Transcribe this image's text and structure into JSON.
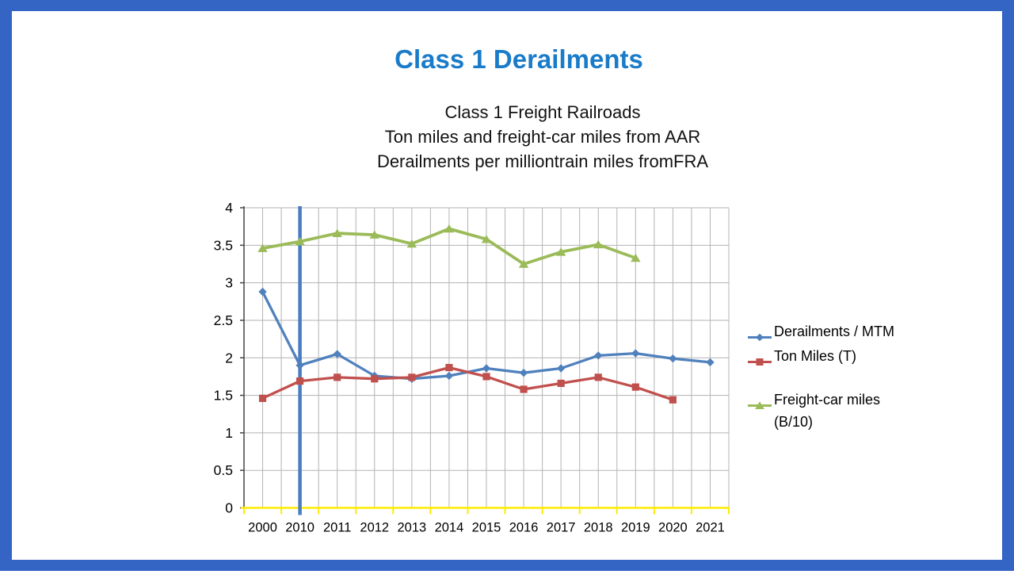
{
  "slide": {
    "title": "Class 1 Derailments",
    "title_color": "#1A7BC9",
    "frame_color": "#3464C4",
    "background": "#FFFFFF"
  },
  "chart_data": {
    "type": "line",
    "title_lines": [
      "Class 1 Freight Railroads",
      "Ton miles and freight-car miles from AAR",
      "Derailments per milliontrain miles fromFRA"
    ],
    "categories": [
      "2000",
      "2010",
      "2011",
      "2012",
      "2013",
      "2014",
      "2015",
      "2016",
      "2017",
      "2018",
      "2019",
      "2020",
      "2021"
    ],
    "series": [
      {
        "name": "Derailments / MTM",
        "color": "#4F81BD",
        "marker": "diamond",
        "values": [
          2.88,
          1.9,
          2.05,
          1.76,
          1.72,
          1.76,
          1.86,
          1.8,
          1.86,
          2.03,
          2.06,
          1.99,
          1.94
        ]
      },
      {
        "name": "Ton Miles (T)",
        "color": "#C0504D",
        "marker": "square",
        "values": [
          1.46,
          1.69,
          1.74,
          1.72,
          1.74,
          1.87,
          1.75,
          1.58,
          1.66,
          1.74,
          1.61,
          1.44,
          null
        ]
      },
      {
        "name": "Freight-car miles (B/10)",
        "color": "#9BBB59",
        "marker": "triangle",
        "values": [
          3.46,
          3.55,
          3.66,
          3.64,
          3.52,
          3.72,
          3.58,
          3.25,
          3.41,
          3.51,
          3.33,
          null,
          null
        ]
      }
    ],
    "ylim": [
      0,
      4
    ],
    "ytick_step": 0.5,
    "ytick_labels": [
      "0",
      "0.5",
      "1",
      "1.5",
      "2",
      "2.5",
      "3",
      "3.5",
      "4"
    ],
    "grid": true,
    "minor_vertical_gridlines": true,
    "legend_position": "right",
    "annotation_vline": {
      "at_category": "2010",
      "color": "#4A7CC2"
    },
    "axis_style": {
      "x_axis_color": "#FFEB00",
      "y_axis_color": "#454545",
      "grid_color": "#B3B3B3"
    }
  }
}
